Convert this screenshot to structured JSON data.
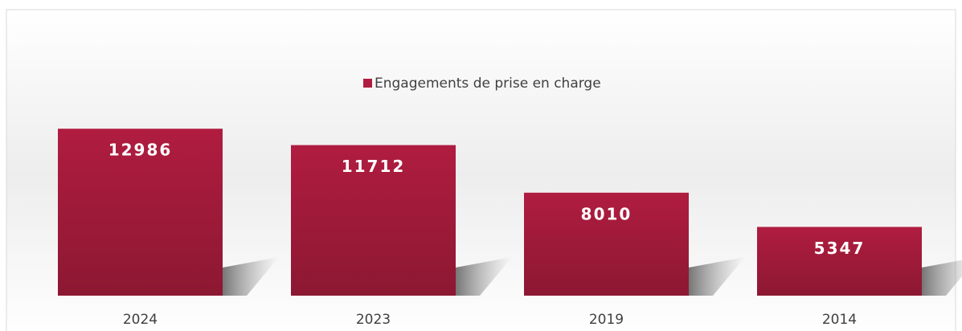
{
  "chart_data": {
    "type": "bar",
    "categories": [
      "2024",
      "2023",
      "2019",
      "2014"
    ],
    "series": [
      {
        "name": "Engagements de prise en charge",
        "color": "#b01c40",
        "values": [
          12986,
          11712,
          8010,
          5347
        ]
      }
    ],
    "ylim": [
      0,
      14000
    ],
    "legend": "top"
  }
}
